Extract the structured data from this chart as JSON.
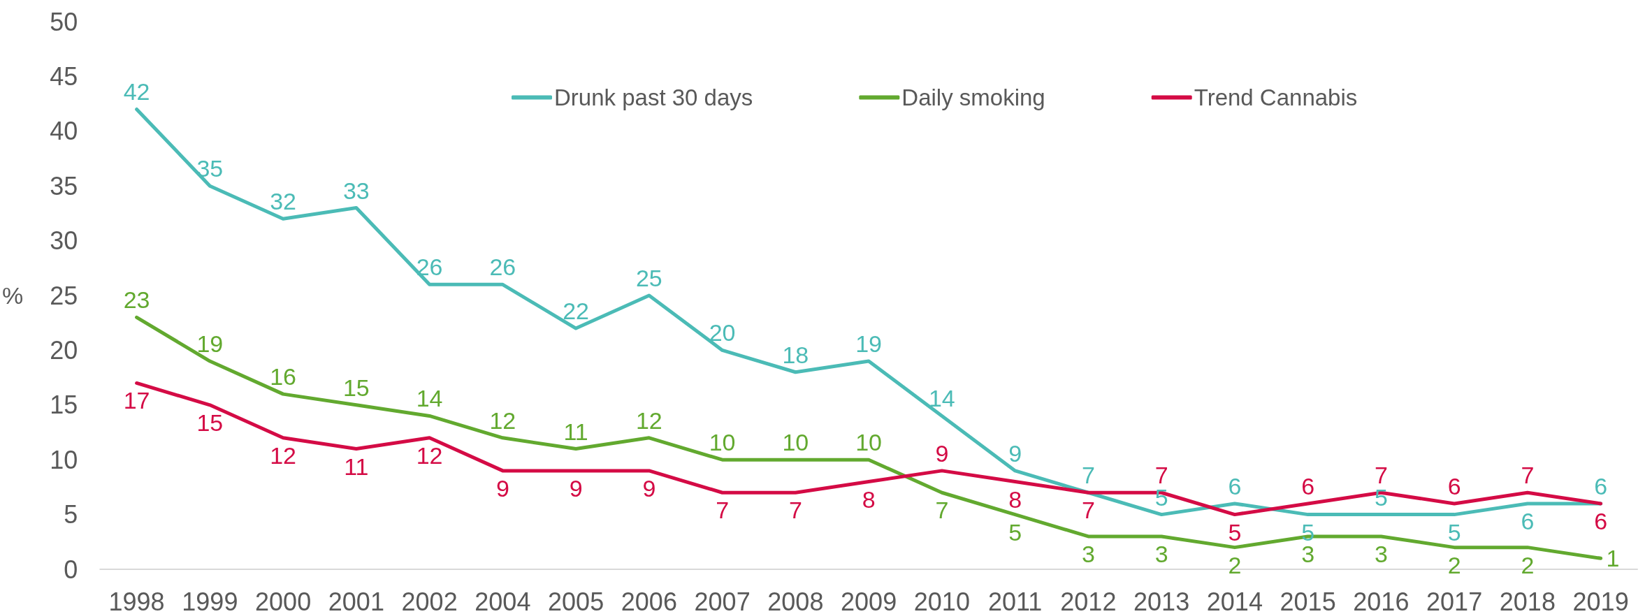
{
  "chart_data": {
    "type": "line",
    "categories": [
      "1998",
      "1999",
      "2000",
      "2001",
      "2002",
      "2004",
      "2005",
      "2006",
      "2007",
      "2008",
      "2009",
      "2010",
      "2011",
      "2012",
      "2013",
      "2014",
      "2015",
      "2016",
      "2017",
      "2018",
      "2019"
    ],
    "series": [
      {
        "name": "Drunk past 30 days",
        "color": "#4bbbb6",
        "values": [
          42,
          35,
          32,
          33,
          26,
          26,
          22,
          25,
          20,
          18,
          19,
          14,
          9,
          7,
          5,
          6,
          5,
          5,
          5,
          6,
          6
        ]
      },
      {
        "name": "Daily smoking",
        "color": "#62a92f",
        "values": [
          23,
          19,
          16,
          15,
          14,
          12,
          11,
          12,
          10,
          10,
          10,
          7,
          5,
          3,
          3,
          2,
          3,
          3,
          2,
          2,
          1
        ]
      },
      {
        "name": "Trend Cannabis",
        "color": "#d40b45",
        "values": [
          17,
          15,
          12,
          11,
          12,
          9,
          9,
          9,
          7,
          7,
          8,
          9,
          8,
          7,
          7,
          5,
          6,
          7,
          6,
          7,
          6
        ]
      }
    ],
    "ylabel": "%",
    "ylim": [
      0,
      50
    ],
    "yticks": [
      0,
      5,
      10,
      15,
      20,
      25,
      30,
      35,
      40,
      45,
      50
    ],
    "data_labels": true,
    "legend": "top",
    "marker": "none"
  }
}
